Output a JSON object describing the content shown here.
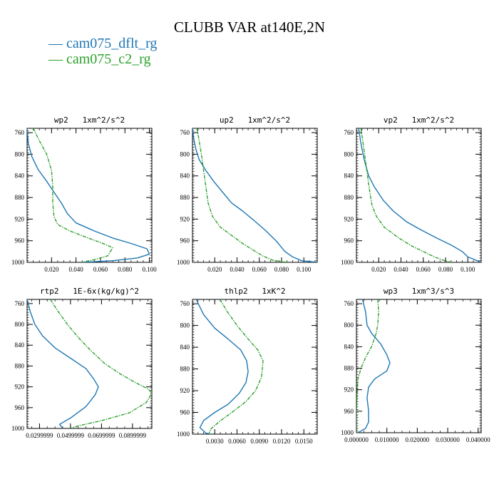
{
  "title": "CLUBB VAR at140E,2N",
  "legend": [
    {
      "label": "cam075_dflt_rg",
      "color": "#1f77b4"
    },
    {
      "label": "cam075_c2_rg",
      "color": "#2ca02c"
    }
  ],
  "chart_data": [
    {
      "type": "line",
      "title": "wp2   1xm^2/s^2",
      "xlim": [
        0.0,
        0.102
      ],
      "ylim": [
        1000,
        752
      ],
      "xticks": [
        0.02,
        0.04,
        0.06,
        0.08,
        0.1
      ],
      "xticklabels": [
        "0.020",
        "0.040",
        "0.060",
        "0.080",
        "0.100"
      ],
      "yticks": [
        760,
        800,
        840,
        880,
        920,
        960,
        1000
      ],
      "series": [
        {
          "name": "cam075_dflt_rg",
          "color": "#1f77b4",
          "points": [
            [
              0.0,
              752
            ],
            [
              0.001,
              780
            ],
            [
              0.004,
              805
            ],
            [
              0.009,
              828
            ],
            [
              0.016,
              850
            ],
            [
              0.022,
              870
            ],
            [
              0.028,
              890
            ],
            [
              0.033,
              910
            ],
            [
              0.04,
              927
            ],
            [
              0.055,
              942
            ],
            [
              0.07,
              955
            ],
            [
              0.085,
              965
            ],
            [
              0.098,
              975
            ],
            [
              0.1,
              985
            ],
            [
              0.09,
              992
            ],
            [
              0.07,
              997
            ],
            [
              0.045,
              1000
            ]
          ]
        },
        {
          "name": "cam075_c2_rg",
          "color": "#2ca02c",
          "points": [
            [
              0.005,
              752
            ],
            [
              0.01,
              775
            ],
            [
              0.016,
              800
            ],
            [
              0.02,
              830
            ],
            [
              0.021,
              860
            ],
            [
              0.021,
              890
            ],
            [
              0.022,
              915
            ],
            [
              0.025,
              930
            ],
            [
              0.035,
              942
            ],
            [
              0.05,
              955
            ],
            [
              0.063,
              966
            ],
            [
              0.07,
              973
            ],
            [
              0.066,
              988
            ],
            [
              0.055,
              995
            ],
            [
              0.045,
              1000
            ]
          ]
        }
      ]
    },
    {
      "type": "line",
      "title": "up2   1xm^2/s^2",
      "xlim": [
        0.0,
        0.112
      ],
      "ylim": [
        1000,
        752
      ],
      "xticks": [
        0.02,
        0.04,
        0.06,
        0.08,
        0.1
      ],
      "xticklabels": [
        "0.020",
        "0.040",
        "0.060",
        "0.080",
        "0.100"
      ],
      "yticks": [
        760,
        800,
        840,
        880,
        920,
        960,
        1000
      ],
      "series": [
        {
          "name": "cam075_dflt_rg",
          "color": "#1f77b4",
          "points": [
            [
              0.0,
              752
            ],
            [
              0.001,
              770
            ],
            [
              0.003,
              790
            ],
            [
              0.006,
              810
            ],
            [
              0.012,
              830
            ],
            [
              0.019,
              850
            ],
            [
              0.027,
              870
            ],
            [
              0.035,
              890
            ],
            [
              0.045,
              905
            ],
            [
              0.055,
              922
            ],
            [
              0.065,
              940
            ],
            [
              0.075,
              960
            ],
            [
              0.083,
              980
            ],
            [
              0.09,
              990
            ],
            [
              0.098,
              997
            ],
            [
              0.112,
              1000
            ]
          ]
        },
        {
          "name": "cam075_c2_rg",
          "color": "#2ca02c",
          "points": [
            [
              0.004,
              752
            ],
            [
              0.006,
              775
            ],
            [
              0.008,
              800
            ],
            [
              0.01,
              830
            ],
            [
              0.012,
              860
            ],
            [
              0.014,
              890
            ],
            [
              0.018,
              915
            ],
            [
              0.025,
              935
            ],
            [
              0.035,
              950
            ],
            [
              0.045,
              965
            ],
            [
              0.055,
              978
            ],
            [
              0.063,
              988
            ],
            [
              0.072,
              996
            ],
            [
              0.085,
              1000
            ]
          ]
        }
      ]
    },
    {
      "type": "line",
      "title": "vp2   1xm^2/s^2",
      "xlim": [
        0.0,
        0.112
      ],
      "ylim": [
        1000,
        752
      ],
      "xticks": [
        0.02,
        0.04,
        0.06,
        0.08,
        0.1
      ],
      "xticklabels": [
        "0.020",
        "0.040",
        "0.060",
        "0.080",
        "0.100"
      ],
      "yticks": [
        760,
        800,
        840,
        880,
        920,
        960,
        1000
      ],
      "series": [
        {
          "name": "cam075_dflt_rg",
          "color": "#1f77b4",
          "points": [
            [
              0.002,
              752
            ],
            [
              0.004,
              780
            ],
            [
              0.007,
              810
            ],
            [
              0.011,
              840
            ],
            [
              0.016,
              860
            ],
            [
              0.024,
              885
            ],
            [
              0.033,
              905
            ],
            [
              0.045,
              925
            ],
            [
              0.058,
              940
            ],
            [
              0.072,
              955
            ],
            [
              0.085,
              968
            ],
            [
              0.095,
              980
            ],
            [
              0.1,
              990
            ],
            [
              0.112,
              1000
            ]
          ]
        },
        {
          "name": "cam075_c2_rg",
          "color": "#2ca02c",
          "points": [
            [
              0.004,
              752
            ],
            [
              0.006,
              780
            ],
            [
              0.008,
              810
            ],
            [
              0.01,
              840
            ],
            [
              0.012,
              870
            ],
            [
              0.014,
              895
            ],
            [
              0.018,
              915
            ],
            [
              0.025,
              935
            ],
            [
              0.038,
              955
            ],
            [
              0.05,
              970
            ],
            [
              0.062,
              982
            ],
            [
              0.07,
              990
            ],
            [
              0.078,
              996
            ],
            [
              0.085,
              1000
            ]
          ]
        }
      ]
    },
    {
      "type": "line",
      "title": "rtp2   1E-6x(kg/kg)^2",
      "xlim": [
        0.022,
        0.1025
      ],
      "ylim": [
        1000,
        752
      ],
      "xticks": [
        0.03,
        0.05,
        0.07,
        0.09
      ],
      "xticklabels": [
        "0.0299999",
        "0.0499999",
        "0.0699999",
        "0.0899999"
      ],
      "yticks": [
        760,
        800,
        840,
        880,
        920,
        960,
        1000
      ],
      "series": [
        {
          "name": "cam075_dflt_rg",
          "color": "#1f77b4",
          "points": [
            [
              0.022,
              752
            ],
            [
              0.024,
              775
            ],
            [
              0.027,
              800
            ],
            [
              0.032,
              822
            ],
            [
              0.04,
              845
            ],
            [
              0.05,
              865
            ],
            [
              0.06,
              885
            ],
            [
              0.065,
              905
            ],
            [
              0.068,
              920
            ],
            [
              0.066,
              935
            ],
            [
              0.06,
              958
            ],
            [
              0.05,
              980
            ],
            [
              0.043,
              992
            ],
            [
              0.045,
              1000
            ]
          ]
        },
        {
          "name": "cam075_c2_rg",
          "color": "#2ca02c",
          "points": [
            [
              0.037,
              752
            ],
            [
              0.042,
              775
            ],
            [
              0.048,
              800
            ],
            [
              0.055,
              825
            ],
            [
              0.063,
              850
            ],
            [
              0.072,
              875
            ],
            [
              0.082,
              895
            ],
            [
              0.092,
              912
            ],
            [
              0.1,
              924
            ],
            [
              0.1025,
              932
            ],
            [
              0.099,
              950
            ],
            [
              0.088,
              970
            ],
            [
              0.07,
              985
            ],
            [
              0.055,
              995
            ],
            [
              0.05,
              1000
            ]
          ]
        }
      ]
    },
    {
      "type": "line",
      "title": "thlp2   1xK^2",
      "xlim": [
        0.0,
        0.0168
      ],
      "ylim": [
        1000,
        752
      ],
      "xticks": [
        0.003,
        0.006,
        0.009,
        0.012,
        0.015
      ],
      "xticklabels": [
        "0.0030",
        "0.0060",
        "0.0090",
        "0.0120",
        "0.0150"
      ],
      "yticks": [
        760,
        800,
        840,
        880,
        920,
        960,
        1000
      ],
      "series": [
        {
          "name": "cam075_dflt_rg",
          "color": "#1f77b4",
          "points": [
            [
              0.0005,
              752
            ],
            [
              0.0015,
              780
            ],
            [
              0.003,
              805
            ],
            [
              0.0048,
              825
            ],
            [
              0.0065,
              845
            ],
            [
              0.0073,
              865
            ],
            [
              0.0075,
              885
            ],
            [
              0.0072,
              905
            ],
            [
              0.0063,
              925
            ],
            [
              0.0048,
              945
            ],
            [
              0.003,
              960
            ],
            [
              0.0015,
              975
            ],
            [
              0.001,
              988
            ],
            [
              0.0018,
              998
            ],
            [
              0.0025,
              1000
            ]
          ]
        },
        {
          "name": "cam075_c2_rg",
          "color": "#2ca02c",
          "points": [
            [
              0.0037,
              752
            ],
            [
              0.0047,
              775
            ],
            [
              0.006,
              800
            ],
            [
              0.0075,
              825
            ],
            [
              0.0088,
              845
            ],
            [
              0.0095,
              865
            ],
            [
              0.0093,
              895
            ],
            [
              0.0085,
              920
            ],
            [
              0.0072,
              940
            ],
            [
              0.0055,
              958
            ],
            [
              0.0038,
              975
            ],
            [
              0.0025,
              990
            ],
            [
              0.0022,
              1000
            ]
          ]
        }
      ]
    },
    {
      "type": "line",
      "title": "wp3   1xm^3/s^3",
      "xlim": [
        0.0,
        0.041
      ],
      "ylim": [
        1000,
        752
      ],
      "xticks": [
        0.0,
        0.01,
        0.02,
        0.03,
        0.04
      ],
      "xticklabels": [
        "0.000000",
        "0.010000",
        "0.020000",
        "0.030000",
        "0.040000"
      ],
      "yticks": [
        760,
        800,
        840,
        880,
        920,
        960,
        1000
      ],
      "series": [
        {
          "name": "cam075_dflt_rg",
          "color": "#1f77b4",
          "points": [
            [
              0.002,
              752
            ],
            [
              0.003,
              775
            ],
            [
              0.0035,
              800
            ],
            [
              0.005,
              815
            ],
            [
              0.008,
              835
            ],
            [
              0.01,
              855
            ],
            [
              0.011,
              870
            ],
            [
              0.01,
              885
            ],
            [
              0.006,
              900
            ],
            [
              0.004,
              915
            ],
            [
              0.0035,
              935
            ],
            [
              0.004,
              960
            ],
            [
              0.004,
              980
            ],
            [
              0.003,
              992
            ],
            [
              0.0005,
              1000
            ]
          ]
        },
        {
          "name": "cam075_c2_rg",
          "color": "#2ca02c",
          "points": [
            [
              0.007,
              752
            ],
            [
              0.0073,
              775
            ],
            [
              0.007,
              800
            ],
            [
              0.0065,
              815
            ],
            [
              0.005,
              840
            ],
            [
              0.003,
              860
            ],
            [
              0.0015,
              880
            ],
            [
              0.0005,
              900
            ],
            [
              0.0002,
              930
            ],
            [
              0.0,
              960
            ],
            [
              0.0,
              1000
            ]
          ]
        }
      ]
    }
  ]
}
